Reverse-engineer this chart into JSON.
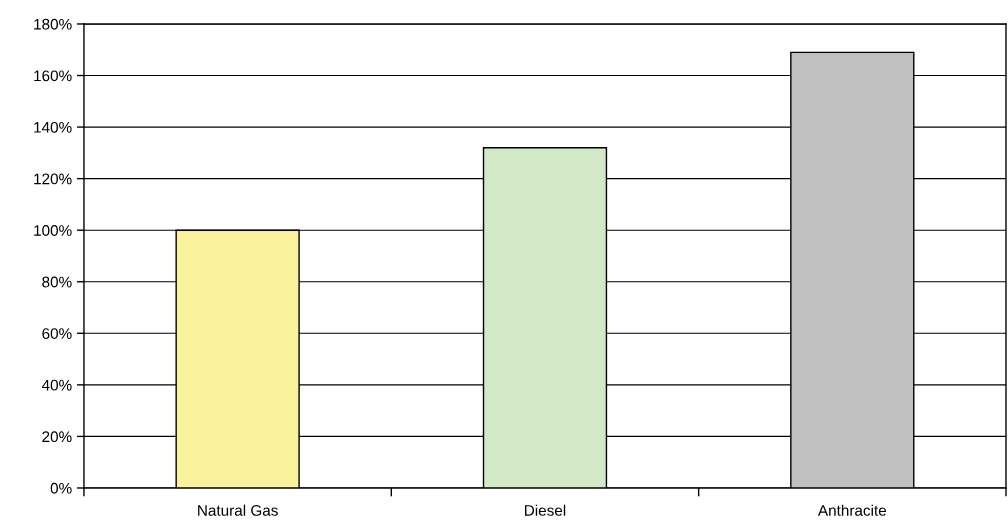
{
  "chart_data": {
    "type": "bar",
    "categories": [
      "Natural Gas",
      "Diesel",
      "Anthracite"
    ],
    "values": [
      100,
      132,
      169
    ],
    "colors": [
      "#f9f19b",
      "#d3e8c6",
      "#c0c0c0"
    ],
    "ylim": [
      0,
      180
    ],
    "yticks": [
      {
        "value": 0,
        "label": "0%"
      },
      {
        "value": 20,
        "label": "20%"
      },
      {
        "value": 40,
        "label": "40%"
      },
      {
        "value": 60,
        "label": "60%"
      },
      {
        "value": 80,
        "label": "80%"
      },
      {
        "value": 100,
        "label": "100%"
      },
      {
        "value": 120,
        "label": "120%"
      },
      {
        "value": 140,
        "label": "140%"
      },
      {
        "value": 160,
        "label": "160%"
      },
      {
        "value": 180,
        "label": "180%"
      }
    ],
    "grid": "y",
    "legend": false
  }
}
